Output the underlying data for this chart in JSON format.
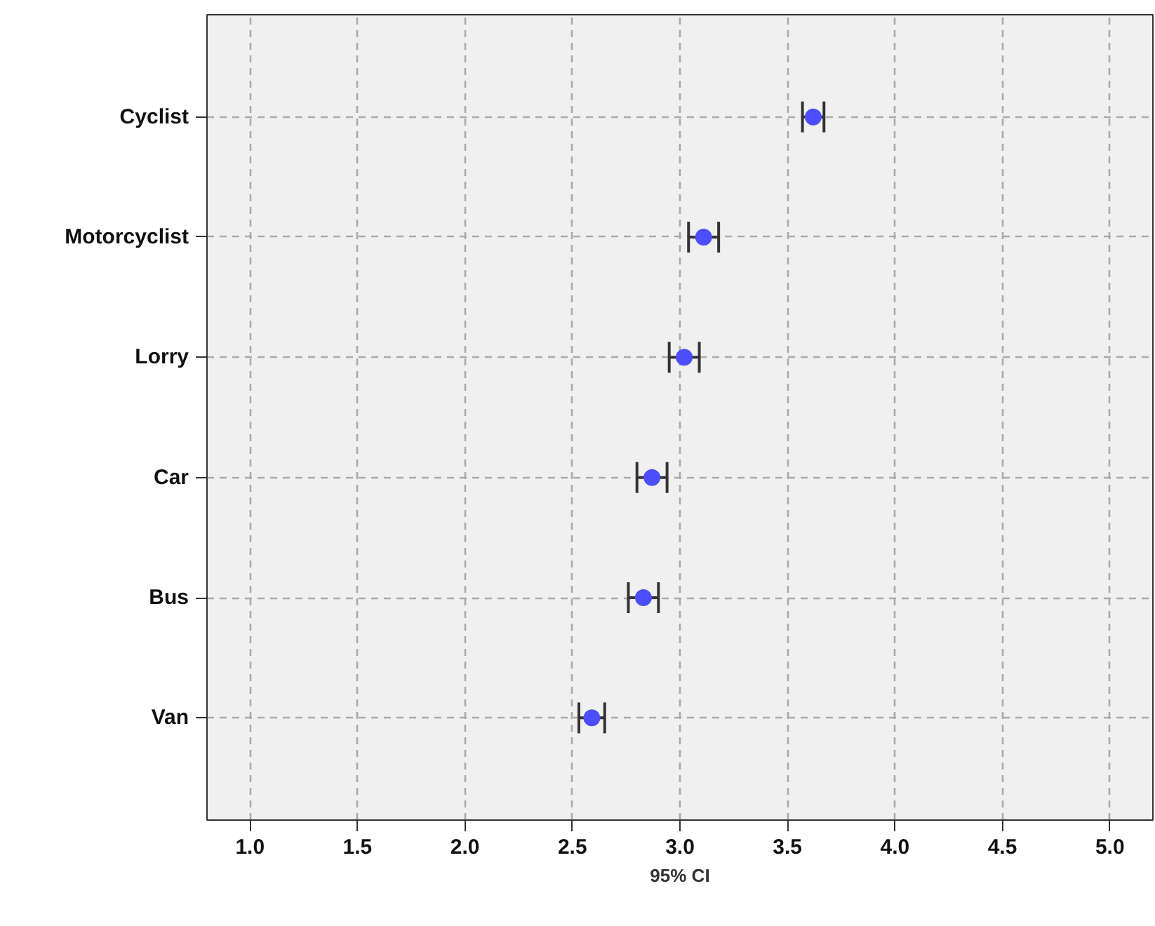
{
  "chart_data": {
    "type": "scatter",
    "orientation": "horizontal",
    "categories": [
      "Cyclist",
      "Motorcyclist",
      "Lorry",
      "Car",
      "Bus",
      "Van"
    ],
    "values": [
      3.62,
      3.11,
      3.02,
      2.87,
      2.83,
      2.59
    ],
    "errors": [
      0.05,
      0.07,
      0.07,
      0.07,
      0.07,
      0.06
    ],
    "color": "#4d4dff",
    "marker": "circle",
    "xlabel": "95% CI",
    "xlim": [
      0.8,
      5.2
    ],
    "xticks": [
      {
        "value": 1.0,
        "label": "1.0"
      },
      1.5,
      {
        "value": 2.0,
        "label": "2.0"
      },
      2.5,
      {
        "value": 3.0,
        "label": "3.0"
      },
      3.5,
      {
        "value": 4.0,
        "label": "4.0"
      },
      4.5,
      {
        "value": 5.0,
        "label": "5.0"
      }
    ],
    "grid": true
  }
}
